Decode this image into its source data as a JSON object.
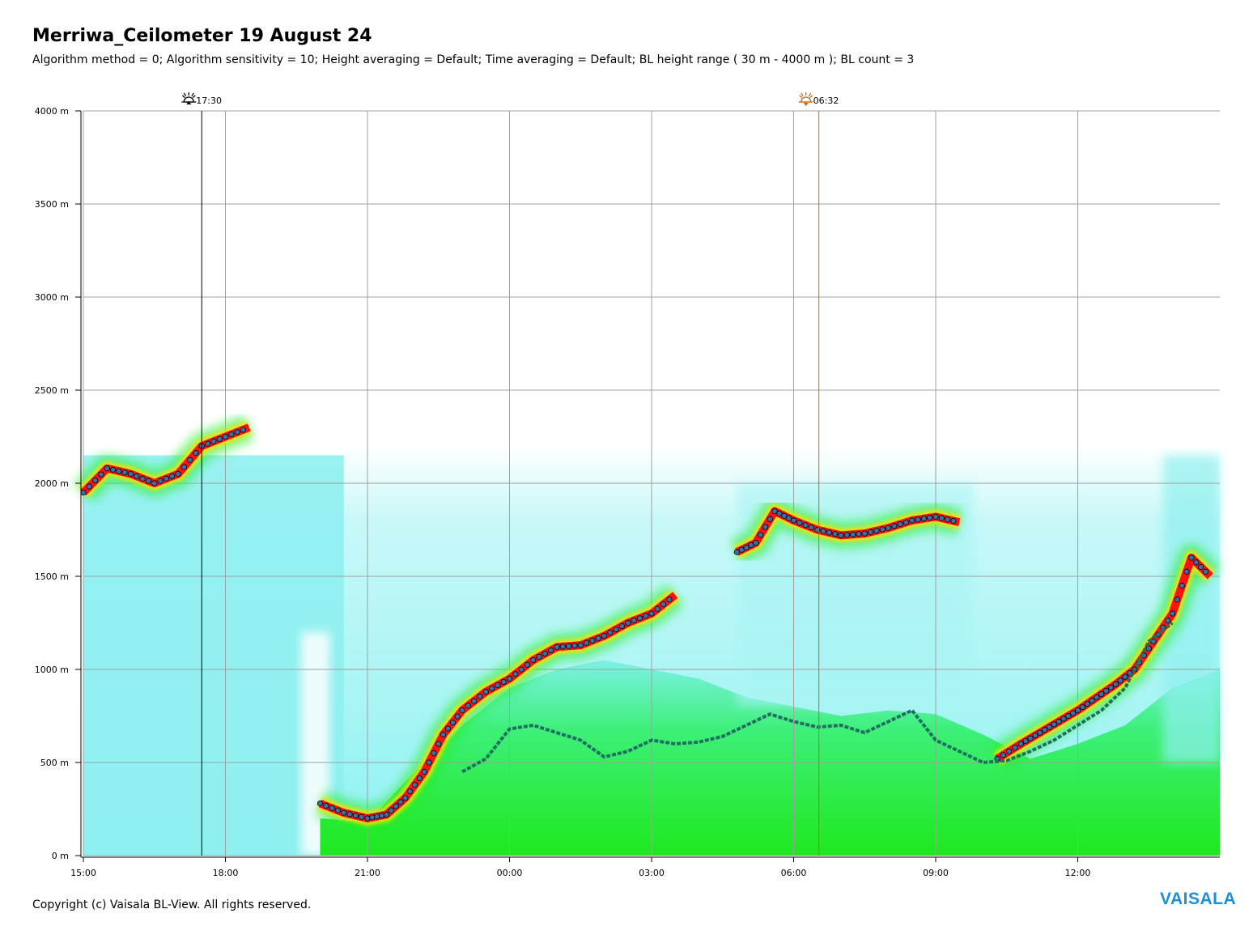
{
  "header": {
    "title": "Merriwa_Ceilometer 19 August 24",
    "subtitle": "Algorithm method = 0; Algorithm sensitivity = 10; Height averaging = Default; Time averaging = Default; BL height range ( 30 m - 4000 m ); BL count = 3"
  },
  "footer": {
    "copyright": "Copyright (c) Vaisala BL-View. All rights reserved.",
    "brand": "VAISALA"
  },
  "colors": {
    "grid": "#a0a0a0",
    "sunset_line": "#000000",
    "sunrise_line": "#c86414",
    "backscatter_low": "#7ff0f0",
    "backscatter_mid": "#22ee22",
    "backscatter_high": "#ff1010",
    "layer_marker": "#3a6fa8",
    "bl_trace": "#207060"
  },
  "chart_data": {
    "type": "heatmap",
    "title": "Merriwa_Ceilometer 19 August 24",
    "xlabel": "",
    "ylabel": "",
    "x_range": [
      "15:00",
      "15:00"
    ],
    "x_ticks": [
      "15:00",
      "18:00",
      "21:00",
      "00:00",
      "03:00",
      "06:00",
      "09:00",
      "12:00"
    ],
    "y_range_m": [
      0,
      4000
    ],
    "y_ticks": [
      "0 m",
      "500 m",
      "1000 m",
      "1500 m",
      "2000 m",
      "2500 m",
      "3000 m",
      "3500 m",
      "4000 m"
    ],
    "grid": true,
    "sun_events": [
      {
        "type": "sunset",
        "label": "17:30",
        "hour": 17.5
      },
      {
        "type": "sunrise",
        "label": "06:32",
        "hour": 30.533
      }
    ],
    "cloud_layers": [
      {
        "name": "layer1",
        "x_hours": [
          15.0,
          15.5,
          16.0,
          16.5,
          17.0,
          17.5,
          18.0,
          18.5
        ],
        "heights_m": [
          1950,
          2080,
          2050,
          2000,
          2050,
          2200,
          2250,
          2300
        ]
      },
      {
        "name": "layer2",
        "x_hours": [
          20.0,
          20.5,
          21.0,
          21.4,
          21.8,
          22.2,
          22.6,
          23.0,
          23.5,
          24.0,
          24.5,
          25.0,
          25.5,
          26.0,
          26.5,
          27.0,
          27.5
        ],
        "heights_m": [
          280,
          230,
          200,
          220,
          310,
          450,
          650,
          780,
          880,
          950,
          1050,
          1120,
          1130,
          1180,
          1250,
          1300,
          1400
        ]
      },
      {
        "name": "layer3",
        "x_hours": [
          28.8,
          29.2,
          29.6,
          30.0,
          30.5,
          31.0,
          31.5,
          32.0,
          32.5,
          33.0,
          33.5
        ],
        "heights_m": [
          1630,
          1680,
          1850,
          1800,
          1750,
          1720,
          1730,
          1760,
          1800,
          1820,
          1790
        ]
      },
      {
        "name": "layer4",
        "x_hours": [
          34.3,
          34.8,
          35.2,
          35.6,
          36.0,
          36.4,
          36.8,
          37.2,
          37.6,
          38.0,
          38.4,
          38.8
        ],
        "heights_m": [
          520,
          600,
          660,
          720,
          780,
          850,
          920,
          1000,
          1150,
          1300,
          1600,
          1500
        ]
      }
    ],
    "bl_height_trace": {
      "x_hours": [
        23.0,
        23.5,
        24.0,
        24.5,
        25.0,
        25.5,
        26.0,
        26.5,
        27.0,
        27.5,
        28.0,
        28.5,
        29.0,
        29.5,
        30.0,
        30.5,
        31.0,
        31.5,
        32.0,
        32.5,
        33.0,
        33.5,
        34.0,
        34.5,
        35.0,
        35.5,
        36.0,
        36.5,
        37.0,
        37.5,
        38.0
      ],
      "heights_m": [
        450,
        520,
        680,
        700,
        660,
        620,
        530,
        560,
        620,
        600,
        610,
        640,
        700,
        760,
        720,
        690,
        700,
        660,
        720,
        780,
        620,
        560,
        500,
        510,
        560,
        620,
        700,
        780,
        900,
        1150,
        1250
      ]
    }
  }
}
